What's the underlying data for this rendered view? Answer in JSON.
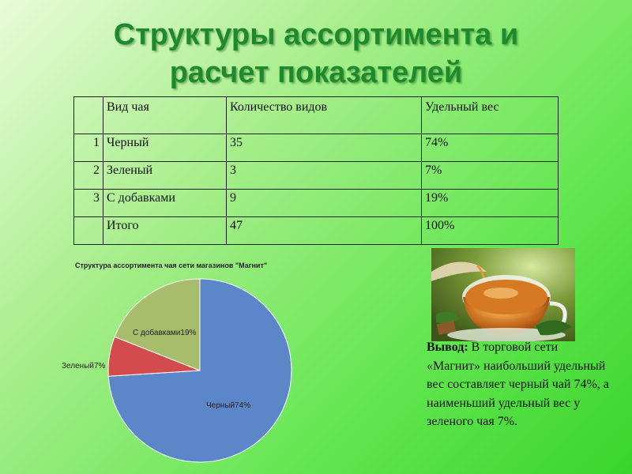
{
  "title": {
    "line1": "Структуры ассортимента и",
    "line2": "расчет показателей"
  },
  "table": {
    "headers": [
      "",
      "Вид чая",
      "Количество видов",
      "Удельный вес"
    ],
    "rows": [
      [
        "1",
        "Черный",
        "35",
        "74%"
      ],
      [
        "2",
        "Зеленый",
        "3",
        "7%"
      ],
      [
        "3",
        "С добавками",
        "9",
        "19%"
      ],
      [
        "",
        "Итого",
        "47",
        "100%"
      ]
    ]
  },
  "chart_data": {
    "type": "pie",
    "title": "Структура ассортимента чая сети магазинов \"Магнит\"",
    "categories": [
      "Черный",
      "Зеленый",
      "С добавками"
    ],
    "values": [
      74,
      7,
      19
    ],
    "labels": [
      "Черный74%",
      "Зеленый7%",
      "С добавками19%"
    ],
    "colors": [
      "#5b86c8",
      "#d24c4e",
      "#a8bd6c"
    ],
    "legend": "none"
  },
  "conclusion": {
    "lead": "Вывод:",
    "text": "В торговой сети «Магнит» наибольший удельный вес составляет черный чай 74%, а наименьший удельный вес у зеленого чая 7%."
  }
}
